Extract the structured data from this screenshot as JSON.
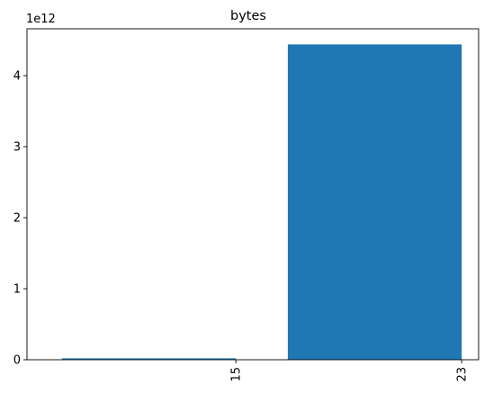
{
  "chart_data": {
    "type": "bar",
    "title": "bytes",
    "categories": [
      "15",
      "23"
    ],
    "values": [
      20000000000,
      4440000000000
    ],
    "ylim": [
      0,
      4660000000000
    ],
    "yticks": [
      0,
      1000000000000,
      2000000000000,
      3000000000000,
      4000000000000
    ],
    "ytick_labels": [
      "0",
      "1",
      "2",
      "3",
      "4"
    ],
    "y_offset_label": "1e12",
    "xtick_rotation": 90,
    "grid": false,
    "legend": "none",
    "bar_color": "#1f77b4"
  }
}
